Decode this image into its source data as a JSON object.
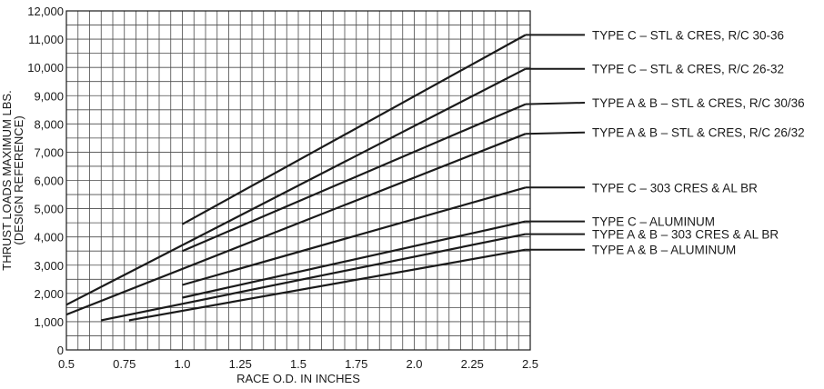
{
  "chart_data": {
    "type": "line",
    "title": "",
    "xlabel": "RACE O.D. IN INCHES",
    "ylabel_line1": "THRUST LOADS MAXIMUM LBS.",
    "ylabel_line2": "(DESIGN REFERENCE)",
    "xlim": [
      0.5,
      2.5
    ],
    "ylim": [
      0,
      12000
    ],
    "x_ticks": [
      0.5,
      0.75,
      1.0,
      1.25,
      1.5,
      1.75,
      2.0,
      2.25,
      2.5
    ],
    "x_tick_labels": [
      "0.5",
      "0.75",
      "1.0",
      "1.25",
      "1.5",
      "1.75",
      "2.0",
      "2.25",
      "2.5"
    ],
    "y_ticks": [
      0,
      1000,
      2000,
      3000,
      4000,
      5000,
      6000,
      7000,
      8000,
      9000,
      10000,
      11000,
      12000
    ],
    "y_tick_labels": [
      "0",
      "1,000",
      "2,000",
      "3,000",
      "4,000",
      "5,000",
      "6,000",
      "7,000",
      "8,000",
      "9,000",
      "10,000",
      "11,000",
      "12,000"
    ],
    "grid": true,
    "grid_x_step": 0.05,
    "grid_y_step": 500,
    "legend_placement": "right, at line ends",
    "series": [
      {
        "name": "TYPE C – STL & CRES, R/C 30-36",
        "x": [
          1.0,
          2.48
        ],
        "y": [
          4450,
          11150
        ]
      },
      {
        "name": "TYPE C – STL & CRES, R/C 26-32",
        "x": [
          0.5,
          2.48
        ],
        "y": [
          1600,
          9950
        ]
      },
      {
        "name": "TYPE A & B – STL & CRES, R/C 30/36",
        "x": [
          1.0,
          2.48
        ],
        "y": [
          3500,
          8700
        ]
      },
      {
        "name": "TYPE A & B – STL & CRES, R/C 26/32",
        "x": [
          0.5,
          2.48
        ],
        "y": [
          1250,
          7650
        ]
      },
      {
        "name": "TYPE C – 303 CRES & AL BR",
        "x": [
          1.0,
          2.48
        ],
        "y": [
          2300,
          5750
        ]
      },
      {
        "name": "TYPE C – ALUMINUM",
        "x": [
          1.0,
          2.48
        ],
        "y": [
          1850,
          4550
        ]
      },
      {
        "name": "TYPE A & B – 303 CRES & AL BR",
        "x": [
          0.65,
          2.48
        ],
        "y": [
          1050,
          4100
        ]
      },
      {
        "name": "TYPE A & B – ALUMINUM",
        "x": [
          0.77,
          2.48
        ],
        "y": [
          1050,
          3550
        ]
      }
    ],
    "legend_y": [
      11150,
      9950,
      8750,
      7700,
      5750,
      4550,
      4100,
      3550
    ]
  }
}
